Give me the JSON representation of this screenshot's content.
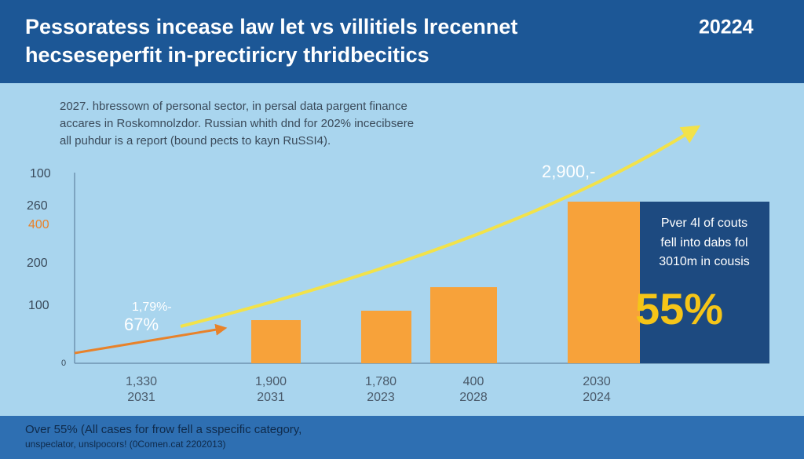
{
  "header": {
    "title_lines": [
      "Pessoratess incease law let vs villitiels lrecennet",
      "hecseseperfit in-prectiricry thridbecitics"
    ],
    "year": "20224"
  },
  "intro": [
    "2027. hbressown of personal sector, in persal data pargent finance",
    "accares in Roskomnolzdor. Russian whith dnd for 202% incecibsere",
    "all puhdur is a report (bound pects to kayn RuSSI4)."
  ],
  "axis_labels": [
    "100",
    "260",
    "400",
    "200",
    "100",
    "0"
  ],
  "callouts": {
    "left_small": "1,79%-",
    "left_big": "67%",
    "peak": "2,900,-"
  },
  "columns": [
    {
      "top": "1,330",
      "bottom": "2031"
    },
    {
      "top": "1,900",
      "bottom": "2031"
    },
    {
      "top": "1,780",
      "bottom": "2023"
    },
    {
      "top": "400",
      "bottom": "2028"
    },
    {
      "top": "2030",
      "bottom": "2024"
    }
  ],
  "panel": {
    "lines": [
      "Pver 4l of couts",
      "fell into dabs fol",
      "3010m in cousis"
    ],
    "big": "55%"
  },
  "footer": [
    "Over 55% (All cases for frow fell a sspecific category,",
    "unspeclator, unslpocors! (0Comen.cat 2202013)"
  ]
}
